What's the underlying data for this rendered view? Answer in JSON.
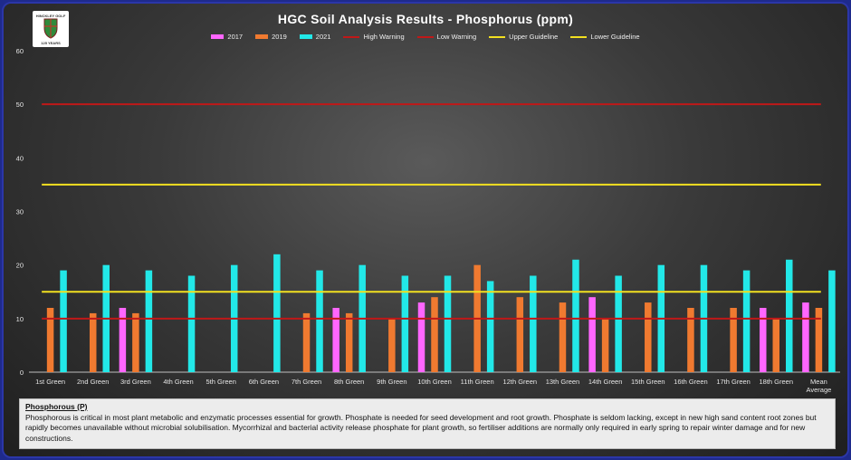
{
  "logo": {
    "top_text": "HINCKLEY GOLF CLUB",
    "bottom_text": "125 YEARS"
  },
  "chart_data": {
    "type": "bar",
    "title": "HGC Soil Analysis Results - Phosphorus (ppm)",
    "categories": [
      "1st Green",
      "2nd Green",
      "3rd Green",
      "4th Green",
      "5th Green",
      "6th Green",
      "7th Green",
      "8th Green",
      "9th Green",
      "10th Green",
      "11th Green",
      "12th Green",
      "13th Green",
      "14th Green",
      "15th Green",
      "16th Green",
      "17th Green",
      "18th Green",
      "Mean Average"
    ],
    "series": [
      {
        "name": "2017",
        "color": "#ff66ff",
        "values": [
          null,
          null,
          12,
          null,
          null,
          null,
          null,
          12,
          null,
          13,
          null,
          null,
          null,
          14,
          null,
          null,
          null,
          12,
          13
        ]
      },
      {
        "name": "2019",
        "color": "#f07a30",
        "values": [
          12,
          11,
          11,
          null,
          null,
          null,
          11,
          11,
          10,
          14,
          20,
          14,
          13,
          10,
          13,
          12,
          12,
          10,
          12
        ]
      },
      {
        "name": "2021",
        "color": "#22e8e8",
        "values": [
          19,
          20,
          19,
          18,
          20,
          22,
          19,
          20,
          18,
          18,
          17,
          18,
          21,
          18,
          20,
          20,
          19,
          21,
          19
        ]
      }
    ],
    "reference_lines": [
      {
        "name": "High Warning",
        "color": "#c01818",
        "value": 50
      },
      {
        "name": "Low Warning",
        "color": "#c01818",
        "value": 10
      },
      {
        "name": "Upper Guideline",
        "color": "#f2e020",
        "value": 35
      },
      {
        "name": "Lower Guideline",
        "color": "#f2e020",
        "value": 15
      }
    ],
    "ylim": [
      0,
      60
    ],
    "yticks": [
      "0",
      "10",
      "20",
      "30",
      "40",
      "50",
      "60"
    ],
    "legend_position": "top",
    "grid": false
  },
  "note": {
    "title": "Phosphorous (P)",
    "body": "Phosphorous is critical in most plant metabolic and enzymatic processes essential for growth. Phosphate is needed for seed development and root growth. Phosphate is seldom lacking, except in new high sand content root zones but rapidly becomes unavailable without microbial solubilisation. Mycorrhizal and bacterial activity release phosphate for plant growth, so fertiliser additions are normally only required in early spring to repair winter damage and for new constructions."
  }
}
